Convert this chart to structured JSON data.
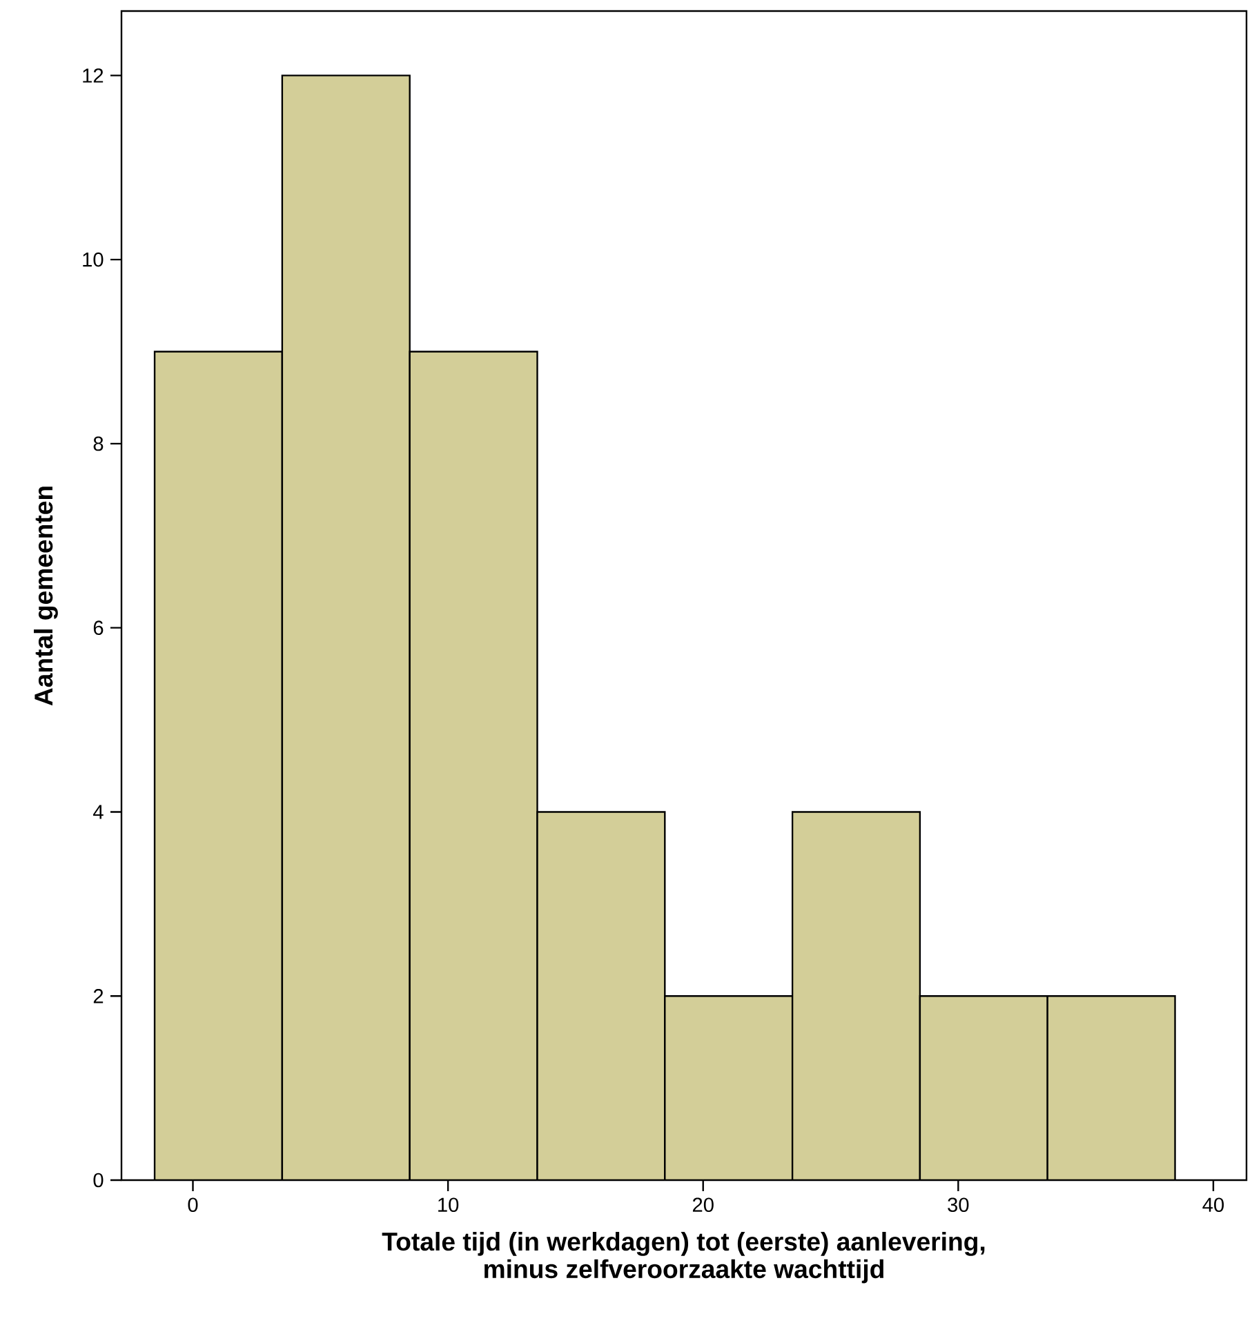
{
  "chart_data": {
    "type": "histogram",
    "xlabel": "Totale tijd (in werkdagen) tot (eerste) aanlevering,\nminus zelfveroorzaakte wachttijd",
    "ylabel": "Aantal gemeenten",
    "bins": [
      -1.5,
      3.5,
      8.5,
      13.5,
      18.5,
      23.5,
      28.5,
      33.5,
      38.5
    ],
    "values": [
      9,
      12,
      9,
      4,
      2,
      4,
      2,
      2
    ],
    "color": "#d3ce98",
    "xlim": [
      -2.8,
      41.3
    ],
    "ylim": [
      0,
      12.7
    ],
    "xticks": [
      0,
      10,
      20,
      30,
      40
    ],
    "yticks": [
      0,
      2,
      4,
      6,
      8,
      10,
      12
    ]
  }
}
